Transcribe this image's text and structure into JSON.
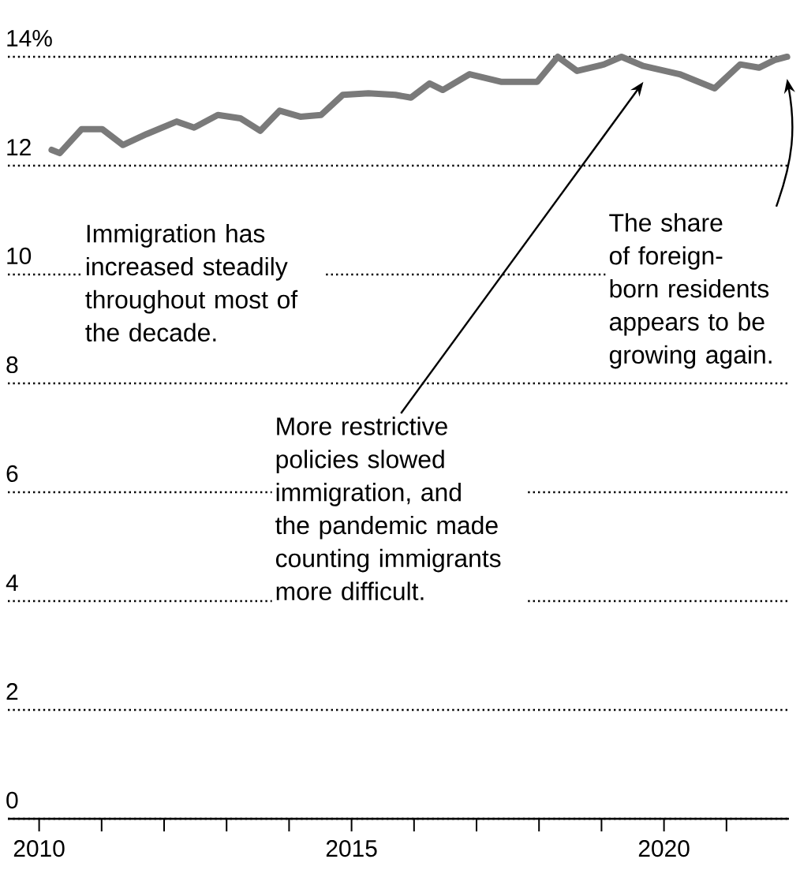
{
  "chart_data": {
    "type": "line",
    "x": [
      2010.2,
      2010.33,
      2010.68,
      2011.01,
      2011.34,
      2011.72,
      2012.2,
      2012.48,
      2012.86,
      2013.22,
      2013.54,
      2013.85,
      2014.18,
      2014.51,
      2014.86,
      2015.27,
      2015.7,
      2015.95,
      2016.25,
      2016.46,
      2016.89,
      2017.39,
      2017.97,
      2018.3,
      2018.61,
      2019.04,
      2019.32,
      2019.67,
      2020.25,
      2020.81,
      2021.22,
      2021.52,
      2021.77,
      2021.97
    ],
    "series": [
      {
        "color": "#7a7a7a",
        "values": [
          12.29,
          12.23,
          12.67,
          12.67,
          12.38,
          12.58,
          12.81,
          12.7,
          12.93,
          12.87,
          12.64,
          13.01,
          12.9,
          12.93,
          13.3,
          13.33,
          13.3,
          13.25,
          13.51,
          13.39,
          13.68,
          13.54,
          13.54,
          14.0,
          13.74,
          13.86,
          14.0,
          13.83,
          13.68,
          13.42,
          13.86,
          13.8,
          13.94,
          14.0
        ]
      }
    ],
    "xlim": [
      2009.5,
      2022
    ],
    "xticks": [
      2010,
      {
        "value": 2011,
        "label": null
      },
      {
        "value": 2012,
        "label": null
      },
      {
        "value": 2013,
        "label": null
      },
      {
        "value": 2014,
        "label": null
      },
      2015,
      {
        "value": 2016,
        "label": null
      },
      {
        "value": 2017,
        "label": null
      },
      {
        "value": 2018,
        "label": null
      },
      {
        "value": 2019,
        "label": null
      },
      2020,
      {
        "value": 2021,
        "label": null
      }
    ],
    "ylim": [
      0,
      14
    ],
    "yticks": [
      0,
      2,
      4,
      6,
      8,
      10,
      12,
      {
        "value": 14,
        "label": "14%"
      }
    ],
    "grid": "y",
    "annotations": [
      "Immigration has increased steadily throughout most of the decade.",
      "More restrictive policies slowed immigration, and the pandemic made counting immigrants more difficult.",
      "The share of foreign-born residents appears to be growing again."
    ]
  }
}
